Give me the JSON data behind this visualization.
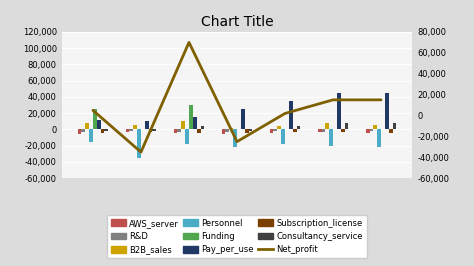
{
  "title": "Chart Title",
  "series": {
    "AWS_server": [
      -5000,
      -3000,
      -4000,
      -5000,
      -4000,
      -3500,
      -4500
    ],
    "R&D": [
      -3000,
      -2000,
      -3000,
      -3000,
      -2500,
      -3000,
      -2500
    ],
    "B2B_sales": [
      8000,
      5000,
      10000,
      2000,
      4000,
      8000,
      5000
    ],
    "Personnel": [
      -15000,
      -35000,
      -18000,
      -22000,
      -18000,
      -20000,
      -22000
    ],
    "Funding": [
      25000,
      0,
      30000,
      0,
      0,
      0,
      0
    ],
    "Pay_per_use": [
      12000,
      10000,
      15000,
      25000,
      35000,
      45000,
      45000
    ],
    "Subscription_license": [
      -4000,
      -3000,
      -4000,
      -4000,
      -3500,
      -3500,
      -4000
    ],
    "Consultancy_service": [
      -2000,
      -2000,
      4000,
      -2000,
      4000,
      8000,
      8000
    ],
    "Net_profit": [
      5000,
      -35000,
      70000,
      -25000,
      2000,
      15000,
      15000
    ]
  },
  "colors": {
    "AWS_server": "#C0504D",
    "R&D": "#808080",
    "B2B_sales": "#CCA300",
    "Personnel": "#4BACC6",
    "Funding": "#4EA64E",
    "Pay_per_use": "#1F3864",
    "Subscription_license": "#7B3F00",
    "Consultancy_service": "#404040",
    "Net_profit": "#7F6000"
  },
  "bar_series": [
    "AWS_server",
    "R&D",
    "B2B_sales",
    "Personnel",
    "Funding",
    "Pay_per_use",
    "Subscription_license",
    "Consultancy_service"
  ],
  "line_series": [
    "Net_profit"
  ],
  "n_groups": 7,
  "ylim_left": [
    -60000,
    120000
  ],
  "ylim_right": [
    -60000,
    80000
  ],
  "yticks_left": [
    -60000,
    -40000,
    -20000,
    0,
    20000,
    40000,
    60000,
    80000,
    100000,
    120000
  ],
  "yticks_right": [
    -60000,
    -40000,
    -20000,
    0,
    20000,
    40000,
    60000,
    80000
  ],
  "bg_color": "#DCDCDC",
  "plot_bg": "#F5F5F5",
  "title_fontsize": 10,
  "tick_fontsize": 6,
  "legend_fontsize": 6
}
